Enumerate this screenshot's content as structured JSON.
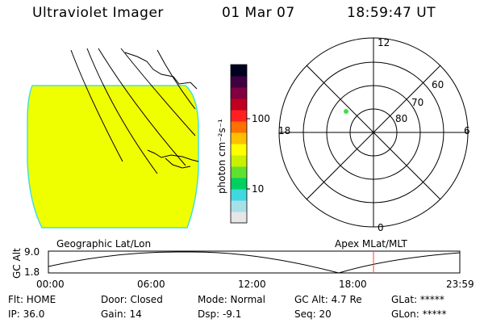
{
  "header": {
    "instrument": "Ultraviolet Imager",
    "date": "01 Mar 07",
    "time": "18:59:47 UT"
  },
  "colorbar": {
    "unit_label": "photon cm⁻²s⁻¹",
    "tick_100": "100",
    "tick_10": "10",
    "colors": [
      "#e6e6e6",
      "#a8e0e8",
      "#40d8e0",
      "#00d060",
      "#60e030",
      "#c8f000",
      "#ffff00",
      "#ffc000",
      "#ff7000",
      "#ff2020",
      "#c00020",
      "#800040",
      "#400040",
      "#000020"
    ]
  },
  "polar_plot": {
    "mlt_top": "12",
    "mlt_bottom": "0",
    "mlt_left": "18",
    "mlt_right": "6",
    "lat_60": "60",
    "lat_70": "70",
    "lat_80": "80"
  },
  "labels": {
    "geo": "Geographic Lat/Lon",
    "apex": "Apex  MLat/MLT"
  },
  "timeline": {
    "ylabel": "GC Alt",
    "ymax": "9.0",
    "ymin": "1.8",
    "t0": "00:00",
    "t1": "06:00",
    "t2": "12:00",
    "t3": "18:00",
    "t4": "23:59"
  },
  "info": {
    "flt": "Flt: HOME",
    "ip": "IP: 36.0",
    "door": "Door: Closed",
    "gain": "Gain: 14",
    "mode": "Mode: Normal",
    "dsp": "Dsp:   -9.1",
    "gcalt": "GC Alt: 4.7 Re",
    "seq": "Seq: 20",
    "glat": "GLat: *****",
    "glon": "GLon: *****"
  },
  "colors": {
    "image_fill": "#f0ff00",
    "image_edge": "#40e0e0",
    "marker": "#40e040",
    "current_time": "#ff4040"
  }
}
